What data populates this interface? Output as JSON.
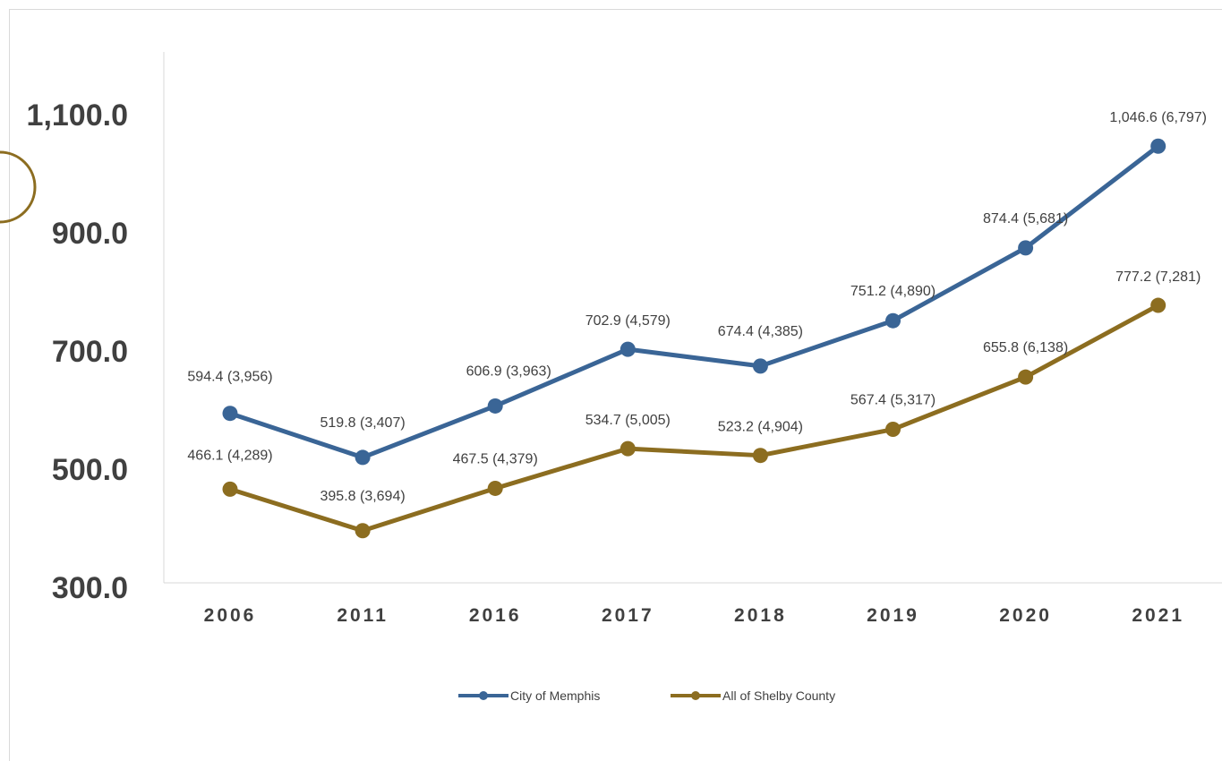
{
  "chart_data": {
    "type": "line",
    "categories": [
      "2006",
      "2011",
      "2016",
      "2017",
      "2018",
      "2019",
      "2020",
      "2021"
    ],
    "series": [
      {
        "name": "City of Memphis",
        "color": "#3a6596",
        "values": [
          594.4,
          519.8,
          606.9,
          702.9,
          674.4,
          751.2,
          874.4,
          1046.6
        ],
        "labels": [
          "594.4 (3,956)",
          "519.8 (3,407)",
          "606.9 (3,963)",
          "702.9 (4,579)",
          "674.4 (4,385)",
          "751.2 (4,890)",
          "874.4 (5,681)",
          "1,046.6 (6,797)"
        ]
      },
      {
        "name": "All of Shelby County",
        "color": "#8c6d20",
        "values": [
          466.1,
          395.8,
          467.5,
          534.7,
          523.2,
          567.4,
          655.8,
          777.2
        ],
        "labels": [
          "466.1 (4,289)",
          "395.8 (3,694)",
          "467.5 (4,379)",
          "534.7 (5,005)",
          "523.2 (4,904)",
          "567.4 (5,317)",
          "655.8 (6,138)",
          "777.2 (7,281)"
        ]
      }
    ],
    "yticks": [
      "300.0",
      "500.0",
      "700.0",
      "900.0",
      "1,100.0"
    ],
    "ytick_values": [
      300,
      500,
      700,
      900,
      1100
    ],
    "ylim": [
      300,
      1100
    ],
    "title": "",
    "xlabel": "",
    "ylabel": "",
    "grid": false,
    "legend_position": "bottom"
  }
}
